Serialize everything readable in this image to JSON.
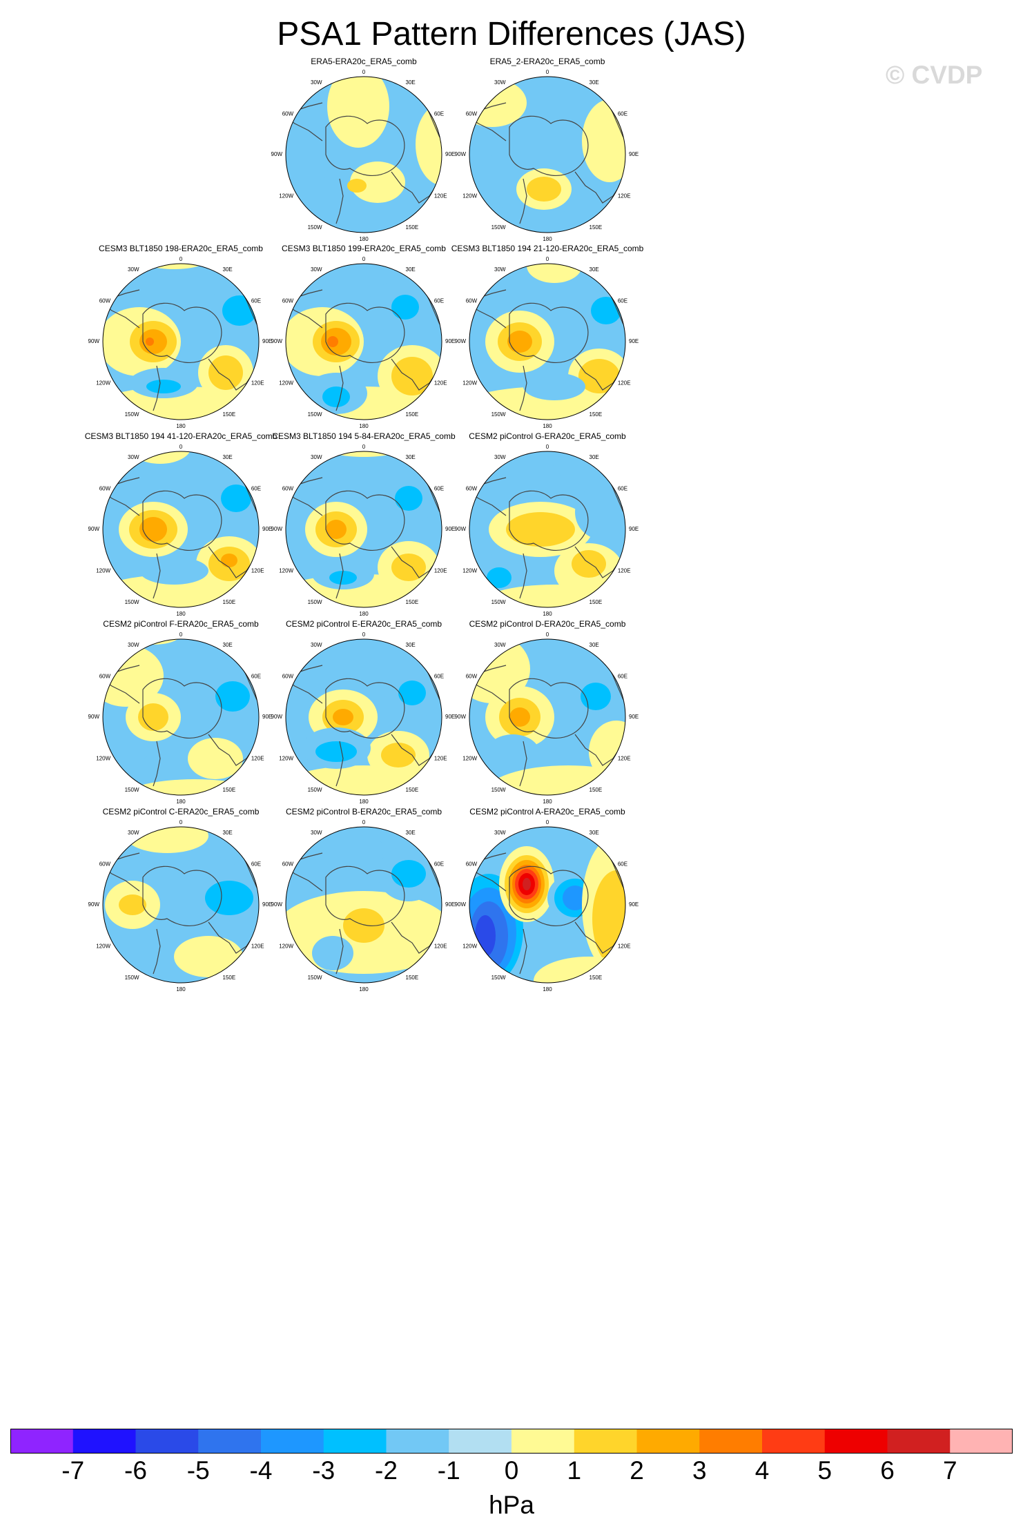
{
  "title": "PSA1 Pattern Differences (JAS)",
  "copyright": "© CVDP",
  "units": "hPa",
  "colors": {
    "land_outline": "#444444",
    "circle_outline": "#000000",
    "levels": [
      "#8f24ff",
      "#1f12ff",
      "#2a4ae8",
      "#2f74ee",
      "#1e97ff",
      "#00c0ff",
      "#72c8f5",
      "#b2dff2",
      "#fffa94",
      "#ffd52b",
      "#ffaa00",
      "#ff7d00",
      "#ff3c14",
      "#ee0000",
      "#d12020",
      "#ffb3b3"
    ]
  },
  "colorbar": {
    "ticks": [
      "-7",
      "-6",
      "-5",
      "-4",
      "-3",
      "-2",
      "-1",
      "0",
      "1",
      "2",
      "3",
      "4",
      "5",
      "6",
      "7"
    ]
  },
  "lon_labels": {
    "top": "0",
    "tr": "30E",
    "rt": "60E",
    "right": "90E",
    "rb": "120E",
    "br": "150E",
    "bottom": "180",
    "bl": "150W",
    "lb": "120W",
    "left": "90W",
    "lt": "60W",
    "tl": "30W"
  },
  "panels": [
    {
      "title": "ERA5-ERA20c_ERA5_comb",
      "row": 0,
      "col": 1,
      "blobs": [
        {
          "dx": -8,
          "dy": -70,
          "rx": 45,
          "ry": 60,
          "v": 1
        },
        {
          "dx": 115,
          "dy": -15,
          "rx": 40,
          "ry": 60,
          "v": 1
        },
        {
          "dx": 20,
          "dy": 40,
          "rx": 40,
          "ry": 30,
          "v": 1
        },
        {
          "dx": -10,
          "dy": 45,
          "rx": 14,
          "ry": 10,
          "v": 2
        },
        {
          "dx": -80,
          "dy": 25,
          "rx": 28,
          "ry": 15,
          "v": -1
        }
      ]
    },
    {
      "title": "ERA5_2-ERA20c_ERA5_comb",
      "row": 0,
      "col": 2,
      "blobs": [
        {
          "dx": -80,
          "dy": -75,
          "rx": 50,
          "ry": 35,
          "v": 1
        },
        {
          "dx": 90,
          "dy": -20,
          "rx": 40,
          "ry": 60,
          "v": 1
        },
        {
          "dx": -5,
          "dy": 50,
          "rx": 40,
          "ry": 30,
          "v": 1
        },
        {
          "dx": -5,
          "dy": 50,
          "rx": 25,
          "ry": 18,
          "v": 2
        },
        {
          "dx": -75,
          "dy": 40,
          "rx": 25,
          "ry": 40,
          "v": -1
        },
        {
          "dx": 55,
          "dy": 95,
          "rx": 35,
          "ry": 25,
          "v": -1
        }
      ]
    },
    {
      "title": "CESM3 BLT1850 198-ERA20c_ERA5_comb",
      "row": 1,
      "col": 0,
      "blobs": [
        {
          "dx": 0,
          "dy": 110,
          "rx": 150,
          "ry": 45,
          "v": 1
        },
        {
          "dx": -60,
          "dy": 0,
          "rx": 60,
          "ry": 50,
          "v": 1
        },
        {
          "dx": -40,
          "dy": 0,
          "rx": 34,
          "ry": 30,
          "v": 2
        },
        {
          "dx": -40,
          "dy": 0,
          "rx": 20,
          "ry": 18,
          "v": 3
        },
        {
          "dx": -45,
          "dy": 0,
          "rx": 6,
          "ry": 6,
          "v": 4
        },
        {
          "dx": 65,
          "dy": 45,
          "rx": 40,
          "ry": 40,
          "v": 1
        },
        {
          "dx": 65,
          "dy": 45,
          "rx": 25,
          "ry": 25,
          "v": 2
        },
        {
          "dx": 85,
          "dy": -45,
          "rx": 45,
          "ry": 40,
          "v": -1
        },
        {
          "dx": 85,
          "dy": -45,
          "rx": 25,
          "ry": 22,
          "v": -2
        },
        {
          "dx": -25,
          "dy": 60,
          "rx": 50,
          "ry": 22,
          "v": -1
        },
        {
          "dx": -25,
          "dy": 65,
          "rx": 25,
          "ry": 10,
          "v": -2
        },
        {
          "dx": -10,
          "dy": -120,
          "rx": 50,
          "ry": 15,
          "v": 1
        }
      ]
    },
    {
      "title": "CESM3 BLT1850 199-ERA20c_ERA5_comb",
      "row": 1,
      "col": 1,
      "blobs": [
        {
          "dx": 0,
          "dy": 110,
          "rx": 150,
          "ry": 45,
          "v": 1
        },
        {
          "dx": -60,
          "dy": 0,
          "rx": 60,
          "ry": 50,
          "v": 1
        },
        {
          "dx": -40,
          "dy": 0,
          "rx": 34,
          "ry": 30,
          "v": 2
        },
        {
          "dx": -40,
          "dy": 0,
          "rx": 22,
          "ry": 20,
          "v": 3
        },
        {
          "dx": -45,
          "dy": 0,
          "rx": 8,
          "ry": 8,
          "v": 4
        },
        {
          "dx": 70,
          "dy": 50,
          "rx": 50,
          "ry": 45,
          "v": 1
        },
        {
          "dx": 70,
          "dy": 50,
          "rx": 30,
          "ry": 28,
          "v": 2
        },
        {
          "dx": 60,
          "dy": -50,
          "rx": 55,
          "ry": 40,
          "v": -1
        },
        {
          "dx": 60,
          "dy": -50,
          "rx": 20,
          "ry": 18,
          "v": -2
        },
        {
          "dx": -40,
          "dy": 75,
          "rx": 45,
          "ry": 30,
          "v": -1
        },
        {
          "dx": -40,
          "dy": 80,
          "rx": 20,
          "ry": 15,
          "v": -2
        }
      ]
    },
    {
      "title": "CESM3 BLT1850 194 21-120-ERA20c_ERA5_comb",
      "row": 1,
      "col": 2,
      "blobs": [
        {
          "dx": 0,
          "dy": 110,
          "rx": 150,
          "ry": 45,
          "v": 1
        },
        {
          "dx": -40,
          "dy": 0,
          "rx": 50,
          "ry": 45,
          "v": 1
        },
        {
          "dx": -40,
          "dy": 0,
          "rx": 32,
          "ry": 28,
          "v": 2
        },
        {
          "dx": -40,
          "dy": 0,
          "rx": 18,
          "ry": 16,
          "v": 3
        },
        {
          "dx": 75,
          "dy": 50,
          "rx": 45,
          "ry": 40,
          "v": 1
        },
        {
          "dx": 75,
          "dy": 50,
          "rx": 30,
          "ry": 25,
          "v": 2
        },
        {
          "dx": 85,
          "dy": -45,
          "rx": 40,
          "ry": 38,
          "v": -1
        },
        {
          "dx": 85,
          "dy": -45,
          "rx": 22,
          "ry": 20,
          "v": -2
        },
        {
          "dx": 10,
          "dy": 65,
          "rx": 45,
          "ry": 20,
          "v": -1
        },
        {
          "dx": 10,
          "dy": -110,
          "rx": 40,
          "ry": 25,
          "v": 1
        }
      ]
    },
    {
      "title": "CESM3 BLT1850 194 41-120-ERA20c_ERA5_comb",
      "row": 2,
      "col": 0,
      "blobs": [
        {
          "dx": 0,
          "dy": 110,
          "rx": 150,
          "ry": 45,
          "v": 1
        },
        {
          "dx": -40,
          "dy": 0,
          "rx": 50,
          "ry": 40,
          "v": 1
        },
        {
          "dx": -40,
          "dy": 0,
          "rx": 35,
          "ry": 28,
          "v": 2
        },
        {
          "dx": -40,
          "dy": 0,
          "rx": 20,
          "ry": 18,
          "v": 3
        },
        {
          "dx": 70,
          "dy": 50,
          "rx": 48,
          "ry": 40,
          "v": 1
        },
        {
          "dx": 70,
          "dy": 50,
          "rx": 30,
          "ry": 25,
          "v": 2
        },
        {
          "dx": 70,
          "dy": 45,
          "rx": 12,
          "ry": 10,
          "v": 3
        },
        {
          "dx": 80,
          "dy": -45,
          "rx": 40,
          "ry": 35,
          "v": -1
        },
        {
          "dx": 80,
          "dy": -45,
          "rx": 22,
          "ry": 20,
          "v": -2
        },
        {
          "dx": -10,
          "dy": 60,
          "rx": 50,
          "ry": 20,
          "v": -1
        },
        {
          "dx": -30,
          "dy": -120,
          "rx": 45,
          "ry": 25,
          "v": 1
        }
      ]
    },
    {
      "title": "CESM3 BLT1850 194 5-84-ERA20c_ERA5_comb",
      "row": 2,
      "col": 1,
      "blobs": [
        {
          "dx": 0,
          "dy": 110,
          "rx": 150,
          "ry": 45,
          "v": 1
        },
        {
          "dx": -40,
          "dy": 0,
          "rx": 45,
          "ry": 40,
          "v": 1
        },
        {
          "dx": -40,
          "dy": 0,
          "rx": 30,
          "ry": 26,
          "v": 2
        },
        {
          "dx": -40,
          "dy": 0,
          "rx": 15,
          "ry": 14,
          "v": 3
        },
        {
          "dx": 65,
          "dy": 55,
          "rx": 45,
          "ry": 38,
          "v": 1
        },
        {
          "dx": 65,
          "dy": 55,
          "rx": 25,
          "ry": 20,
          "v": 2
        },
        {
          "dx": 65,
          "dy": -45,
          "rx": 40,
          "ry": 38,
          "v": -1
        },
        {
          "dx": 65,
          "dy": -45,
          "rx": 20,
          "ry": 18,
          "v": -2
        },
        {
          "dx": -30,
          "dy": 65,
          "rx": 45,
          "ry": 22,
          "v": -1
        },
        {
          "dx": -30,
          "dy": 70,
          "rx": 20,
          "ry": 10,
          "v": -2
        },
        {
          "dx": 0,
          "dy": -120,
          "rx": 60,
          "ry": 15,
          "v": 1
        }
      ]
    },
    {
      "title": "CESM2 piControl G-ERA20c_ERA5_comb",
      "row": 2,
      "col": 2,
      "blobs": [
        {
          "dx": -30,
          "dy": -70,
          "rx": 50,
          "ry": 35,
          "v": -1
        },
        {
          "dx": -10,
          "dy": 0,
          "rx": 75,
          "ry": 40,
          "v": 1
        },
        {
          "dx": -10,
          "dy": 0,
          "rx": 50,
          "ry": 25,
          "v": 2
        },
        {
          "dx": 60,
          "dy": 60,
          "rx": 50,
          "ry": 40,
          "v": 1
        },
        {
          "dx": 60,
          "dy": 50,
          "rx": 25,
          "ry": 20,
          "v": 2
        },
        {
          "dx": 80,
          "dy": -25,
          "rx": 40,
          "ry": 40,
          "v": -1
        },
        {
          "dx": -70,
          "dy": 70,
          "rx": 40,
          "ry": 35,
          "v": -1
        },
        {
          "dx": -70,
          "dy": 70,
          "rx": 18,
          "ry": 15,
          "v": -2
        },
        {
          "dx": 10,
          "dy": 110,
          "rx": 110,
          "ry": 30,
          "v": 1
        }
      ]
    },
    {
      "title": "CESM2 piControl F-ERA20c_ERA5_comb",
      "row": 3,
      "col": 0,
      "blobs": [
        {
          "dx": -80,
          "dy": -60,
          "rx": 55,
          "ry": 45,
          "v": 1
        },
        {
          "dx": -40,
          "dy": 0,
          "rx": 40,
          "ry": 35,
          "v": 1
        },
        {
          "dx": -40,
          "dy": 0,
          "rx": 22,
          "ry": 20,
          "v": 2
        },
        {
          "dx": 75,
          "dy": -30,
          "rx": 50,
          "ry": 45,
          "v": -1
        },
        {
          "dx": 75,
          "dy": -30,
          "rx": 25,
          "ry": 22,
          "v": -2
        },
        {
          "dx": -20,
          "dy": 80,
          "rx": 45,
          "ry": 30,
          "v": -1
        },
        {
          "dx": 50,
          "dy": 60,
          "rx": 40,
          "ry": 30,
          "v": 1
        },
        {
          "dx": 20,
          "dy": 120,
          "rx": 110,
          "ry": 30,
          "v": 1
        },
        {
          "dx": -40,
          "dy": -120,
          "rx": 40,
          "ry": 15,
          "v": 1
        }
      ]
    },
    {
      "title": "CESM2 piControl E-ERA20c_ERA5_comb",
      "row": 3,
      "col": 1,
      "blobs": [
        {
          "dx": 0,
          "dy": 115,
          "rx": 140,
          "ry": 45,
          "v": 1
        },
        {
          "dx": -30,
          "dy": 0,
          "rx": 50,
          "ry": 40,
          "v": 1
        },
        {
          "dx": -30,
          "dy": 0,
          "rx": 30,
          "ry": 25,
          "v": 2
        },
        {
          "dx": -30,
          "dy": 0,
          "rx": 15,
          "ry": 12,
          "v": 3
        },
        {
          "dx": 50,
          "dy": 55,
          "rx": 45,
          "ry": 35,
          "v": 1
        },
        {
          "dx": 50,
          "dy": 55,
          "rx": 25,
          "ry": 18,
          "v": 2
        },
        {
          "dx": 70,
          "dy": -35,
          "rx": 40,
          "ry": 38,
          "v": -1
        },
        {
          "dx": 70,
          "dy": -35,
          "rx": 20,
          "ry": 18,
          "v": -2
        },
        {
          "dx": -40,
          "dy": 45,
          "rx": 50,
          "ry": 30,
          "v": -1
        },
        {
          "dx": -40,
          "dy": 50,
          "rx": 30,
          "ry": 15,
          "v": -2
        },
        {
          "dx": -50,
          "dy": -70,
          "rx": 35,
          "ry": 30,
          "v": -1
        }
      ]
    },
    {
      "title": "CESM2 piControl D-ERA20c_ERA5_comb",
      "row": 3,
      "col": 2,
      "blobs": [
        {
          "dx": -80,
          "dy": -70,
          "rx": 55,
          "ry": 50,
          "v": 1
        },
        {
          "dx": -40,
          "dy": 0,
          "rx": 50,
          "ry": 45,
          "v": 1
        },
        {
          "dx": -40,
          "dy": 0,
          "rx": 30,
          "ry": 28,
          "v": 2
        },
        {
          "dx": -40,
          "dy": 0,
          "rx": 15,
          "ry": 14,
          "v": 3
        },
        {
          "dx": 70,
          "dy": -30,
          "rx": 45,
          "ry": 40,
          "v": -1
        },
        {
          "dx": 70,
          "dy": -30,
          "rx": 22,
          "ry": 20,
          "v": -2
        },
        {
          "dx": -50,
          "dy": 55,
          "rx": 40,
          "ry": 30,
          "v": -1
        },
        {
          "dx": 30,
          "dy": 110,
          "rx": 120,
          "ry": 40,
          "v": 1
        },
        {
          "dx": 100,
          "dy": 50,
          "rx": 40,
          "ry": 45,
          "v": 1
        }
      ]
    },
    {
      "title": "CESM2 piControl C-ERA20c_ERA5_comb",
      "row": 4,
      "col": 0,
      "blobs": [
        {
          "dx": 20,
          "dy": -20,
          "rx": 80,
          "ry": 55,
          "v": -1
        },
        {
          "dx": 70,
          "dy": -10,
          "rx": 35,
          "ry": 25,
          "v": -2
        },
        {
          "dx": -70,
          "dy": 0,
          "rx": 40,
          "ry": 35,
          "v": 1
        },
        {
          "dx": -70,
          "dy": 0,
          "rx": 20,
          "ry": 15,
          "v": 2
        },
        {
          "dx": 40,
          "dy": 75,
          "rx": 50,
          "ry": 30,
          "v": 1
        },
        {
          "dx": -20,
          "dy": -100,
          "rx": 60,
          "ry": 25,
          "v": 1
        },
        {
          "dx": -70,
          "dy": 120,
          "rx": 40,
          "ry": 20,
          "v": 1
        }
      ]
    },
    {
      "title": "CESM2 piControl B-ERA20c_ERA5_comb",
      "row": 4,
      "col": 1,
      "blobs": [
        {
          "dx": 0,
          "dy": 40,
          "rx": 130,
          "ry": 60,
          "v": 1
        },
        {
          "dx": 0,
          "dy": 30,
          "rx": 30,
          "ry": 25,
          "v": 2
        },
        {
          "dx": 65,
          "dy": -45,
          "rx": 45,
          "ry": 40,
          "v": -1
        },
        {
          "dx": 65,
          "dy": -45,
          "rx": 25,
          "ry": 20,
          "v": -2
        },
        {
          "dx": -45,
          "dy": 70,
          "rx": 30,
          "ry": 25,
          "v": -1
        },
        {
          "dx": -20,
          "dy": -80,
          "rx": 50,
          "ry": 25,
          "v": -1
        },
        {
          "dx": 70,
          "dy": -120,
          "rx": 40,
          "ry": 15,
          "v": 1
        }
      ]
    },
    {
      "title": "CESM2 piControl A-ERA20c_ERA5_comb",
      "row": 4,
      "col": 2,
      "blobs": [
        {
          "dx": -85,
          "dy": 30,
          "rx": 65,
          "ry": 100,
          "v": -1
        },
        {
          "dx": -85,
          "dy": 35,
          "rx": 50,
          "ry": 80,
          "v": -2
        },
        {
          "dx": -85,
          "dy": 40,
          "rx": 40,
          "ry": 65,
          "v": -3
        },
        {
          "dx": -85,
          "dy": 45,
          "rx": 28,
          "ry": 50,
          "v": -4
        },
        {
          "dx": -90,
          "dy": 45,
          "rx": 15,
          "ry": 30,
          "v": -5
        },
        {
          "dx": -30,
          "dy": -30,
          "rx": 40,
          "ry": 55,
          "v": 1
        },
        {
          "dx": -30,
          "dy": -30,
          "rx": 32,
          "ry": 42,
          "v": 2
        },
        {
          "dx": -30,
          "dy": -30,
          "rx": 26,
          "ry": 35,
          "v": 3
        },
        {
          "dx": -30,
          "dy": -30,
          "rx": 21,
          "ry": 28,
          "v": 4
        },
        {
          "dx": -30,
          "dy": -30,
          "rx": 17,
          "ry": 22,
          "v": 5
        },
        {
          "dx": -30,
          "dy": -30,
          "rx": 12,
          "ry": 16,
          "v": 6
        },
        {
          "dx": -30,
          "dy": -30,
          "rx": 6,
          "ry": 9,
          "v": 7
        },
        {
          "dx": 40,
          "dy": -10,
          "rx": 40,
          "ry": 35,
          "v": -1
        },
        {
          "dx": 40,
          "dy": -10,
          "rx": 30,
          "ry": 28,
          "v": -2
        },
        {
          "dx": 40,
          "dy": -10,
          "rx": 18,
          "ry": 18,
          "v": -3
        },
        {
          "dx": 100,
          "dy": 0,
          "rx": 50,
          "ry": 100,
          "v": 1
        },
        {
          "dx": 100,
          "dy": 20,
          "rx": 35,
          "ry": 70,
          "v": 2
        },
        {
          "dx": 60,
          "dy": 110,
          "rx": 80,
          "ry": 35,
          "v": 1
        }
      ]
    }
  ]
}
